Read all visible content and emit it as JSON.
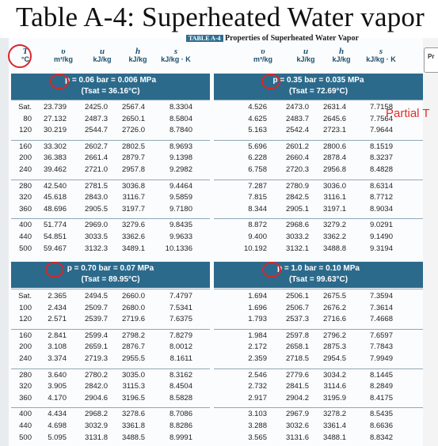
{
  "title": "Table A-4: Superheated Water vapor",
  "caption_tag": "TABLE A-4",
  "caption_text": "Properties of Superheated Water Vapor",
  "annotation": "Partial T",
  "side_thumb_label": "Pr",
  "columns": {
    "temp_symbol": "T",
    "temp_unit": "°C",
    "v_symbol": "υ",
    "v_unit": "m³/kg",
    "u_symbol": "u",
    "u_unit": "kJ/kg",
    "h_symbol": "h",
    "h_unit": "kJ/kg",
    "s_symbol": "s",
    "s_unit": "kJ/kg · K"
  },
  "temperatures": {
    "upper": [
      "Sat.",
      "80",
      "120",
      "160",
      "200",
      "240",
      "280",
      "320",
      "360",
      "400",
      "440",
      "500"
    ],
    "lower": [
      "Sat.",
      "100",
      "120",
      "160",
      "200",
      "240",
      "280",
      "320",
      "360",
      "400",
      "440",
      "500"
    ]
  },
  "blocks": [
    {
      "p_line": "p = 0.06 bar = 0.006 MPa",
      "tsat_line": "(Tsat = 36.16°C)",
      "rows": [
        [
          "23.739",
          "2425.0",
          "2567.4",
          "8.3304"
        ],
        [
          "27.132",
          "2487.3",
          "2650.1",
          "8.5804"
        ],
        [
          "30.219",
          "2544.7",
          "2726.0",
          "8.7840"
        ],
        [
          "33.302",
          "2602.7",
          "2802.5",
          "8.9693"
        ],
        [
          "36.383",
          "2661.4",
          "2879.7",
          "9.1398"
        ],
        [
          "39.462",
          "2721.0",
          "2957.8",
          "9.2982"
        ],
        [
          "42.540",
          "2781.5",
          "3036.8",
          "9.4464"
        ],
        [
          "45.618",
          "2843.0",
          "3116.7",
          "9.5859"
        ],
        [
          "48.696",
          "2905.5",
          "3197.7",
          "9.7180"
        ],
        [
          "51.774",
          "2969.0",
          "3279.6",
          "9.8435"
        ],
        [
          "54.851",
          "3033.5",
          "3362.6",
          "9.9633"
        ],
        [
          "59.467",
          "3132.3",
          "3489.1",
          "10.1336"
        ]
      ]
    },
    {
      "p_line": "p = 0.35 bar = 0.035 MPa",
      "tsat_line": "(Tsat = 72.69°C)",
      "rows": [
        [
          "4.526",
          "2473.0",
          "2631.4",
          "7.7158"
        ],
        [
          "4.625",
          "2483.7",
          "2645.6",
          "7.7564"
        ],
        [
          "5.163",
          "2542.4",
          "2723.1",
          "7.9644"
        ],
        [
          "5.696",
          "2601.2",
          "2800.6",
          "8.1519"
        ],
        [
          "6.228",
          "2660.4",
          "2878.4",
          "8.3237"
        ],
        [
          "6.758",
          "2720.3",
          "2956.8",
          "8.4828"
        ],
        [
          "7.287",
          "2780.9",
          "3036.0",
          "8.6314"
        ],
        [
          "7.815",
          "2842.5",
          "3116.1",
          "8.7712"
        ],
        [
          "8.344",
          "2905.1",
          "3197.1",
          "8.9034"
        ],
        [
          "8.872",
          "2968.6",
          "3279.2",
          "9.0291"
        ],
        [
          "9.400",
          "3033.2",
          "3362.2",
          "9.1490"
        ],
        [
          "10.192",
          "3132.1",
          "3488.8",
          "9.3194"
        ]
      ]
    },
    {
      "p_line": "p = 0.70 bar = 0.07 MPa",
      "tsat_line": "(Tsat = 89.95°C)",
      "rows": [
        [
          "2.365",
          "2494.5",
          "2660.0",
          "7.4797"
        ],
        [
          "2.434",
          "2509.7",
          "2680.0",
          "7.5341"
        ],
        [
          "2.571",
          "2539.7",
          "2719.6",
          "7.6375"
        ],
        [
          "2.841",
          "2599.4",
          "2798.2",
          "7.8279"
        ],
        [
          "3.108",
          "2659.1",
          "2876.7",
          "8.0012"
        ],
        [
          "3.374",
          "2719.3",
          "2955.5",
          "8.1611"
        ],
        [
          "3.640",
          "2780.2",
          "3035.0",
          "8.3162"
        ],
        [
          "3.905",
          "2842.0",
          "3115.3",
          "8.4504"
        ],
        [
          "4.170",
          "2904.6",
          "3196.5",
          "8.5828"
        ],
        [
          "4.434",
          "2968.2",
          "3278.6",
          "8.7086"
        ],
        [
          "4.698",
          "3032.9",
          "3361.8",
          "8.8286"
        ],
        [
          "5.095",
          "3131.8",
          "3488.5",
          "8.9991"
        ]
      ]
    },
    {
      "p_line": "p = 1.0 bar = 0.10 MPa",
      "tsat_line": "(Tsat = 99.63°C)",
      "rows": [
        [
          "1.694",
          "2506.1",
          "2675.5",
          "7.3594"
        ],
        [
          "1.696",
          "2506.7",
          "2676.2",
          "7.3614"
        ],
        [
          "1.793",
          "2537.3",
          "2716.6",
          "7.4668"
        ],
        [
          "1.984",
          "2597.8",
          "2796.2",
          "7.6597"
        ],
        [
          "2.172",
          "2658.1",
          "2875.3",
          "7.7843"
        ],
        [
          "2.359",
          "2718.5",
          "2954.5",
          "7.9949"
        ],
        [
          "2.546",
          "2779.6",
          "3034.2",
          "8.1445"
        ],
        [
          "2.732",
          "2841.5",
          "3114.6",
          "8.2849"
        ],
        [
          "2.917",
          "2904.2",
          "3195.9",
          "8.4175"
        ],
        [
          "3.103",
          "2967.9",
          "3278.2",
          "8.5435"
        ],
        [
          "3.288",
          "3032.6",
          "3361.4",
          "8.6636"
        ],
        [
          "3.565",
          "3131.6",
          "3488.1",
          "8.8342"
        ]
      ]
    }
  ]
}
